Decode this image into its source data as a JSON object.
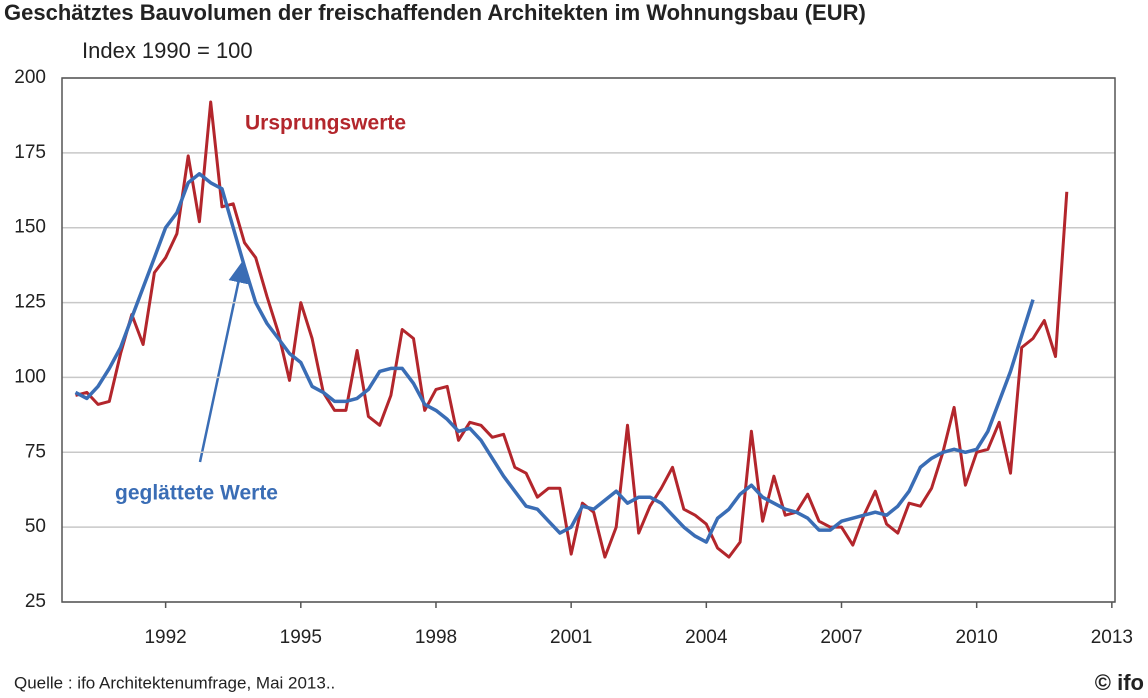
{
  "chart_data": {
    "type": "line",
    "title": "Geschätztes Bauvolumen der freischaffenden Architekten im Wohnungsbau (EUR)",
    "subtitle": "Index 1990 = 100",
    "source": "Quelle : ifo Architektenumfrage, Mai 2013..",
    "logo": "© ifo",
    "annotations": [
      "Ursprungswerte",
      "geglättete Werte"
    ],
    "x": [
      1990,
      1990.25,
      1990.5,
      1990.75,
      1991,
      1991.25,
      1991.5,
      1991.75,
      1992,
      1992.25,
      1992.5,
      1992.75,
      1993,
      1993.25,
      1993.5,
      1993.75,
      1994,
      1994.25,
      1994.5,
      1994.75,
      1995,
      1995.25,
      1995.5,
      1995.75,
      1996,
      1996.25,
      1996.5,
      1996.75,
      1997,
      1997.25,
      1997.5,
      1997.75,
      1998,
      1998.25,
      1998.5,
      1998.75,
      1999,
      1999.25,
      1999.5,
      1999.75,
      2000,
      2000.25,
      2000.5,
      2000.75,
      2001,
      2001.25,
      2001.5,
      2001.75,
      2002,
      2002.25,
      2002.5,
      2002.75,
      2003,
      2003.25,
      2003.5,
      2003.75,
      2004,
      2004.25,
      2004.5,
      2004.75,
      2005,
      2005.25,
      2005.5,
      2005.75,
      2006,
      2006.25,
      2006.5,
      2006.75,
      2007,
      2007.25,
      2007.5,
      2007.75,
      2008,
      2008.25,
      2008.5,
      2008.75,
      2009,
      2009.25,
      2009.5,
      2009.75,
      2010,
      2010.25,
      2010.5,
      2010.75,
      2011,
      2011.25,
      2011.5,
      2011.75,
      2012
    ],
    "series": [
      {
        "name": "Ursprungswerte",
        "color": "#b3262c",
        "values": [
          94,
          95,
          91,
          92,
          108,
          121,
          111,
          135,
          140,
          148,
          174,
          152,
          192,
          157,
          158,
          145,
          140,
          127,
          115,
          99,
          125,
          113,
          95,
          89,
          89,
          109,
          87,
          84,
          94,
          116,
          113,
          89,
          96,
          97,
          79,
          85,
          84,
          80,
          81,
          70,
          68,
          60,
          63,
          63,
          41,
          58,
          55,
          40,
          50,
          84,
          48,
          57,
          63,
          70,
          56,
          54,
          51,
          43,
          40,
          45,
          82,
          52,
          67,
          54,
          55,
          61,
          52,
          50,
          50,
          44,
          54,
          62,
          51,
          48,
          58,
          57,
          63,
          75,
          90,
          64,
          75,
          76,
          85,
          68,
          110,
          113,
          119,
          107,
          162
        ]
      },
      {
        "name": "geglättete Werte",
        "color": "#3a6db5",
        "values": [
          95,
          93,
          97,
          103,
          110,
          120,
          130,
          140,
          150,
          155,
          165,
          168,
          165,
          163,
          150,
          137,
          125,
          118,
          113,
          108,
          105,
          97,
          95,
          92,
          92,
          93,
          96,
          102,
          103,
          103,
          98,
          91,
          89,
          86,
          82,
          83,
          79,
          73,
          67,
          62,
          57,
          56,
          52,
          48,
          50,
          57,
          56,
          59,
          62,
          58,
          60,
          60,
          58,
          54,
          50,
          47,
          45,
          53,
          56,
          61,
          64,
          60,
          58,
          56,
          55,
          53,
          49,
          49,
          52,
          53,
          54,
          55,
          54,
          57,
          62,
          70,
          73,
          75,
          76,
          75,
          76,
          82,
          92,
          102,
          114,
          126,
          null,
          null,
          null
        ]
      }
    ],
    "xlim": [
      1989.7,
      2013.07
    ],
    "xticks": [
      1992,
      1995,
      1998,
      2001,
      2004,
      2007,
      2010,
      2013
    ],
    "ylim": [
      25,
      200
    ],
    "yticks": [
      25,
      50,
      75,
      100,
      125,
      150,
      175,
      200
    ],
    "grid": true
  }
}
